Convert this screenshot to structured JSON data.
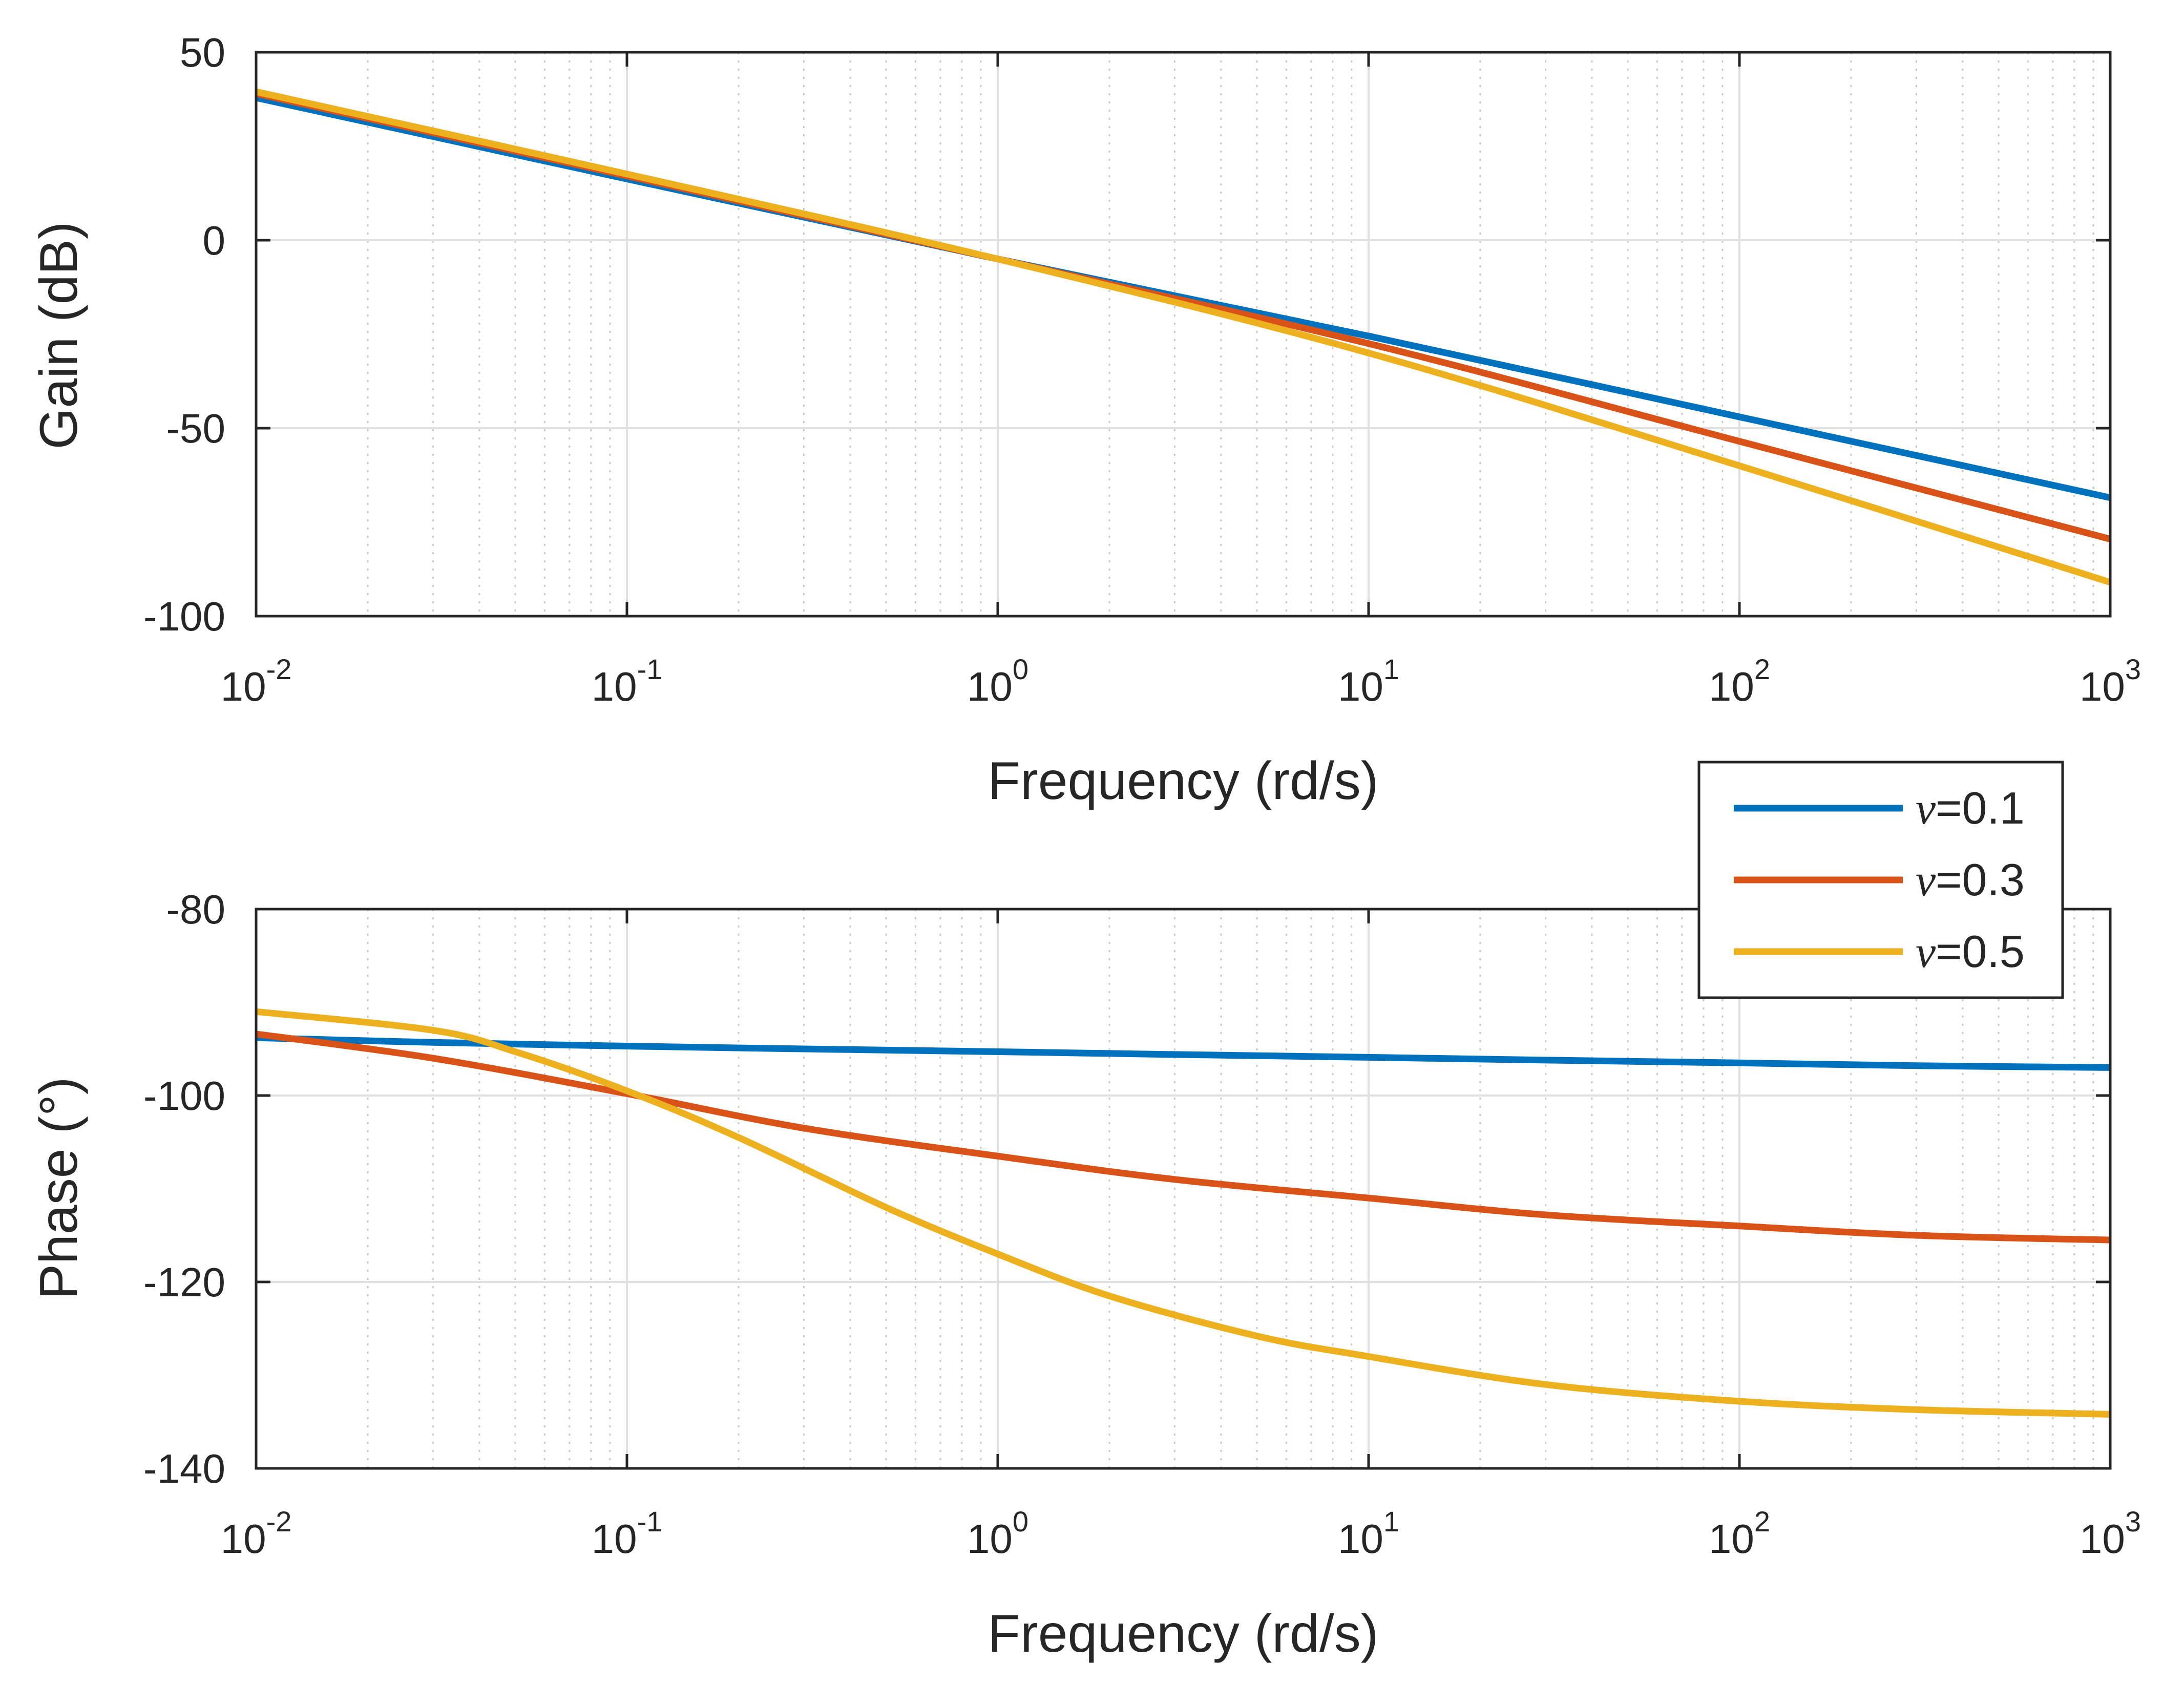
{
  "chart_data": [
    {
      "type": "line",
      "title": "",
      "xlabel": "Frequency (rd/s)",
      "ylabel": "Gain (dB)",
      "xscale": "log",
      "xlim": [
        0.01,
        1000
      ],
      "ylim": [
        -100,
        50
      ],
      "grid": true,
      "xticks": [
        0.01,
        0.1,
        1,
        10,
        100,
        1000
      ],
      "xtick_labels": [
        {
          "base": "10",
          "exp": "-2"
        },
        {
          "base": "10",
          "exp": "-1"
        },
        {
          "base": "10",
          "exp": "0"
        },
        {
          "base": "10",
          "exp": "1"
        },
        {
          "base": "10",
          "exp": "2"
        },
        {
          "base": "10",
          "exp": "3"
        }
      ],
      "yticks": [
        50,
        0,
        -50,
        -100
      ],
      "ytick_labels": [
        "50",
        "0",
        "-50",
        "-100"
      ],
      "series": [
        {
          "name": "ν=0.1",
          "color": "#0072BD",
          "x": [
            0.01,
            0.1,
            1,
            10,
            100,
            1000
          ],
          "y": [
            37.9,
            16.3,
            -5.0,
            -25.5,
            -47.0,
            -68.5
          ]
        },
        {
          "name": "ν=0.3",
          "color": "#D95319",
          "x": [
            0.01,
            0.1,
            1,
            10,
            100,
            1000
          ],
          "y": [
            39.0,
            17.1,
            -5.0,
            -27.5,
            -53.5,
            -79.5
          ]
        },
        {
          "name": "ν=0.5",
          "color": "#EDB120",
          "x": [
            0.01,
            0.1,
            1,
            10,
            100,
            1000
          ],
          "y": [
            39.5,
            17.6,
            -5.0,
            -30.0,
            -60.0,
            -91.0
          ]
        }
      ]
    },
    {
      "type": "line",
      "title": "",
      "xlabel": "Frequency (rd/s)",
      "ylabel": "Phase (°)",
      "xscale": "log",
      "xlim": [
        0.01,
        1000
      ],
      "ylim": [
        -140,
        -80
      ],
      "grid": true,
      "xticks": [
        0.01,
        0.1,
        1,
        10,
        100,
        1000
      ],
      "xtick_labels": [
        {
          "base": "10",
          "exp": "-2"
        },
        {
          "base": "10",
          "exp": "-1"
        },
        {
          "base": "10",
          "exp": "0"
        },
        {
          "base": "10",
          "exp": "1"
        },
        {
          "base": "10",
          "exp": "2"
        },
        {
          "base": "10",
          "exp": "3"
        }
      ],
      "yticks": [
        -80,
        -100,
        -120,
        -140
      ],
      "ytick_labels": [
        "-80",
        "-100",
        "-120",
        "-140"
      ],
      "legend": {
        "location": "top-right",
        "entries": [
          {
            "symbol": "ν",
            "text": "=0.1"
          },
          {
            "symbol": "ν",
            "text": "=0.3"
          },
          {
            "symbol": "ν",
            "text": "=0.5"
          }
        ]
      },
      "series": [
        {
          "name": "ν=0.1",
          "color": "#0072BD",
          "x": [
            0.01,
            0.03,
            0.1,
            0.3,
            1,
            3,
            10,
            30,
            100,
            300,
            1000
          ],
          "y": [
            -93.8,
            -94.3,
            -94.7,
            -95.0,
            -95.3,
            -95.6,
            -95.9,
            -96.2,
            -96.5,
            -96.8,
            -97.0
          ]
        },
        {
          "name": "ν=0.3",
          "color": "#D95319",
          "x": [
            0.01,
            0.03,
            0.1,
            0.3,
            1,
            3,
            10,
            30,
            100,
            300,
            1000
          ],
          "y": [
            -93.4,
            -96.0,
            -99.8,
            -103.5,
            -106.5,
            -109.0,
            -111.0,
            -112.8,
            -114.0,
            -115.0,
            -115.5
          ]
        },
        {
          "name": "ν=0.5",
          "color": "#EDB120",
          "x": [
            0.01,
            0.03,
            0.05,
            0.1,
            0.2,
            0.5,
            1,
            2,
            5,
            10,
            30,
            100,
            300,
            1000
          ],
          "y": [
            -91.0,
            -93.0,
            -95.3,
            -99.5,
            -104.5,
            -112.0,
            -117.0,
            -121.5,
            -125.8,
            -128.0,
            -131.0,
            -132.8,
            -133.7,
            -134.2
          ]
        }
      ]
    }
  ]
}
